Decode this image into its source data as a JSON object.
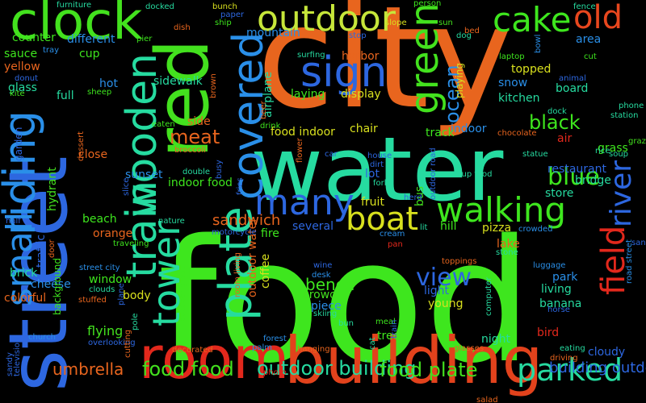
{
  "words": [
    {
      "text": "food",
      "color": "#3ee61e"
    },
    {
      "text": "city",
      "color": "#e8651e"
    },
    {
      "text": "water",
      "color": "#26dba0"
    },
    {
      "text": "street",
      "color": "#2d67e0"
    },
    {
      "text": "building",
      "color": "#e2421c"
    },
    {
      "text": "room",
      "color": "#e2281c"
    },
    {
      "text": "red",
      "color": "#43e11e"
    },
    {
      "text": "clock",
      "color": "#43e11e"
    },
    {
      "text": "outdoor",
      "color": "#c6e63a"
    },
    {
      "text": "cake",
      "color": "#3ee61e"
    },
    {
      "text": "old",
      "color": "#e8471e"
    },
    {
      "text": "sign",
      "color": "#2d67e0"
    },
    {
      "text": "green",
      "color": "#43e11e"
    },
    {
      "text": "riding",
      "color": "#2a8fe8"
    },
    {
      "text": "small",
      "color": "#2a8fe8"
    },
    {
      "text": "train",
      "color": "#26dba0"
    },
    {
      "text": "wooden",
      "color": "#26dba0"
    },
    {
      "text": "covered",
      "color": "#2a8fe8"
    },
    {
      "text": "plate",
      "color": "#26dba0"
    },
    {
      "text": "tower",
      "color": "#26dba0"
    },
    {
      "text": "many",
      "color": "#2d67e0"
    },
    {
      "text": "boat",
      "color": "#d8e01e"
    },
    {
      "text": "walking",
      "color": "#3ee61e"
    },
    {
      "text": "field",
      "color": "#e2281c"
    },
    {
      "text": "river",
      "color": "#2d67e0"
    },
    {
      "text": "blue",
      "color": "#3ee61e"
    },
    {
      "text": "parked",
      "color": "#26dba0"
    },
    {
      "text": "view",
      "color": "#2d67e0"
    },
    {
      "text": "meat",
      "color": "#e8651e"
    },
    {
      "text": "ocean",
      "color": "#2a8fe8"
    },
    {
      "text": "black",
      "color": "#3ee61e"
    },
    {
      "text": "food food",
      "color": "#43e11e"
    },
    {
      "text": "outdoor building",
      "color": "#26dba0"
    },
    {
      "text": "food plate",
      "color": "#43e11e"
    },
    {
      "text": "building outdoor",
      "color": "#2d67e0"
    },
    {
      "text": "umbrella",
      "color": "#e8651e"
    },
    {
      "text": "bench",
      "color": "#3ee61e"
    },
    {
      "text": "sandwich",
      "color": "#e8651e"
    },
    {
      "text": "beach",
      "color": "#3ee61e"
    },
    {
      "text": "orange",
      "color": "#e8651e"
    },
    {
      "text": "window",
      "color": "#3ee61e"
    },
    {
      "text": "cheese",
      "color": "#2a8fe8"
    },
    {
      "text": "brick",
      "color": "#26dba0"
    },
    {
      "text": "colorful",
      "color": "#e8651e"
    },
    {
      "text": "flying",
      "color": "#43e11e"
    },
    {
      "text": "body",
      "color": "#d8e01e"
    },
    {
      "text": "living",
      "color": "#26dba0"
    },
    {
      "text": "banana",
      "color": "#26dba0"
    },
    {
      "text": "park",
      "color": "#2a8fe8"
    },
    {
      "text": "young",
      "color": "#d8e01e"
    },
    {
      "text": "crowd",
      "color": "#43e11e"
    },
    {
      "text": "piece",
      "color": "#2a8fe8"
    },
    {
      "text": "light",
      "color": "#2d67e0"
    },
    {
      "text": "night",
      "color": "#26dba0"
    },
    {
      "text": "tree",
      "color": "#3ee61e"
    },
    {
      "text": "bird",
      "color": "#e2281c"
    },
    {
      "text": "cloudy",
      "color": "#2d67e0"
    },
    {
      "text": "fire",
      "color": "#3ee61e"
    },
    {
      "text": "several",
      "color": "#2d67e0"
    },
    {
      "text": "hill",
      "color": "#3ee61e"
    },
    {
      "text": "pizza",
      "color": "#d8e01e"
    },
    {
      "text": "lake",
      "color": "#e8651e"
    },
    {
      "text": "stone",
      "color": "#26dba0"
    },
    {
      "text": "fruit",
      "color": "#d8e01e"
    },
    {
      "text": "lot",
      "color": "#2d67e0"
    },
    {
      "text": "bus",
      "color": "#43e11e"
    },
    {
      "text": "store",
      "color": "#26dba0"
    },
    {
      "text": "bridge",
      "color": "#26dba0"
    },
    {
      "text": "restaurant",
      "color": "#2d67e0"
    },
    {
      "text": "grass",
      "color": "#3ee61e"
    },
    {
      "text": "air",
      "color": "#e2281c"
    },
    {
      "text": "indoor",
      "color": "#2a8fe8"
    },
    {
      "text": "track",
      "color": "#3ee61e"
    },
    {
      "text": "chair",
      "color": "#d8e01e"
    },
    {
      "text": "food indoor",
      "color": "#d8e01e"
    },
    {
      "text": "side",
      "color": "#e8651e"
    },
    {
      "text": "laying",
      "color": "#3ee61e"
    },
    {
      "text": "display",
      "color": "#d8e01e"
    },
    {
      "text": "harbor",
      "color": "#e8651e"
    },
    {
      "text": "airplane",
      "color": "#26dba0"
    },
    {
      "text": "mountain",
      "color": "#2a8fe8"
    },
    {
      "text": "topped",
      "color": "#d8e01e"
    },
    {
      "text": "snow",
      "color": "#2a8fe8"
    },
    {
      "text": "kitchen",
      "color": "#26dba0"
    },
    {
      "text": "board",
      "color": "#26dba0"
    },
    {
      "text": "area",
      "color": "#2a8fe8"
    },
    {
      "text": "counter",
      "color": "#3ee61e"
    },
    {
      "text": "different",
      "color": "#2a8fe8"
    },
    {
      "text": "sauce",
      "color": "#3ee61e"
    },
    {
      "text": "yellow",
      "color": "#e8651e"
    },
    {
      "text": "glass",
      "color": "#26dba0"
    },
    {
      "text": "full",
      "color": "#26dba0"
    },
    {
      "text": "cup",
      "color": "#3ee61e"
    },
    {
      "text": "hot",
      "color": "#2a8fe8"
    },
    {
      "text": "sidewalk",
      "color": "#26dba0"
    },
    {
      "text": "meal",
      "color": "#3ee61e"
    },
    {
      "text": "close",
      "color": "#e8651e"
    },
    {
      "text": "sunset",
      "color": "#2a8fe8"
    },
    {
      "text": "indoor food",
      "color": "#3ee61e"
    },
    {
      "text": "traffic",
      "color": "#2d67e0"
    },
    {
      "text": "hydrant",
      "color": "#43e11e"
    },
    {
      "text": "garden",
      "color": "#2d67e0"
    },
    {
      "text": "background",
      "color": "#3ee61e"
    },
    {
      "text": "dish",
      "color": "#e8651e"
    },
    {
      "text": "dog",
      "color": "#26dba0"
    },
    {
      "text": "person",
      "color": "#3ee61e"
    },
    {
      "text": "playing",
      "color": "#d8e01e"
    },
    {
      "text": "coffee",
      "color": "#d8e01e"
    },
    {
      "text": "outdoor water",
      "color": "#e8651e"
    },
    {
      "text": "television",
      "color": "#2d67e0"
    },
    {
      "text": "furniture",
      "color": "#26dba0"
    },
    {
      "text": "docked",
      "color": "#26dba0"
    },
    {
      "text": "bunch",
      "color": "#d8e01e"
    },
    {
      "text": "paper",
      "color": "#2d67e0"
    },
    {
      "text": "ship",
      "color": "#3ee61e"
    },
    {
      "text": "fence",
      "color": "#26dba0"
    },
    {
      "text": "slope",
      "color": "#d8e01e"
    },
    {
      "text": "sun",
      "color": "#43e11e"
    },
    {
      "text": "bed",
      "color": "#e8651e"
    },
    {
      "text": "stop",
      "color": "#2d67e0"
    },
    {
      "text": "surfing",
      "color": "#26dba0"
    },
    {
      "text": "tray",
      "color": "#2a8fe8"
    },
    {
      "text": "donut",
      "color": "#2d67e0"
    },
    {
      "text": "kite",
      "color": "#43e11e"
    },
    {
      "text": "sheep",
      "color": "#3ee61e"
    },
    {
      "text": "pier",
      "color": "#3ee61e"
    },
    {
      "text": "laptop",
      "color": "#3ee61e"
    },
    {
      "text": "bowl",
      "color": "#2a8fe8"
    },
    {
      "text": "animal",
      "color": "#2d67e0"
    },
    {
      "text": "cut",
      "color": "#3ee61e"
    },
    {
      "text": "phone",
      "color": "#26dba0"
    },
    {
      "text": "station",
      "color": "#26dba0"
    },
    {
      "text": "soup",
      "color": "#26dba0"
    },
    {
      "text": "grazing",
      "color": "#43e11e"
    },
    {
      "text": "rice",
      "color": "#26dba0"
    },
    {
      "text": "chocolate",
      "color": "#e8651e"
    },
    {
      "text": "dock",
      "color": "#26dba0"
    },
    {
      "text": "statue",
      "color": "#26dba0"
    },
    {
      "text": "house",
      "color": "#2d67e0"
    },
    {
      "text": "dirt",
      "color": "#2d67e0"
    },
    {
      "text": "fork",
      "color": "#26dba0"
    },
    {
      "text": "cup food",
      "color": "#26dba0"
    },
    {
      "text": "outdoor road",
      "color": "#2d67e0"
    },
    {
      "text": "herd",
      "color": "#2d67e0"
    },
    {
      "text": "car",
      "color": "#2d67e0"
    },
    {
      "text": "broccoli",
      "color": "#e8651e"
    },
    {
      "text": "eaten",
      "color": "#3ee61e"
    },
    {
      "text": "double",
      "color": "#26dba0"
    },
    {
      "text": "nature",
      "color": "#26dba0"
    },
    {
      "text": "busy",
      "color": "#2d67e0"
    },
    {
      "text": "fries",
      "color": "#2d67e0"
    },
    {
      "text": "flower",
      "color": "#e8651e"
    },
    {
      "text": "drink",
      "color": "#3ee61e"
    },
    {
      "text": "beer",
      "color": "#e8651e"
    },
    {
      "text": "brown",
      "color": "#e8651e"
    },
    {
      "text": "slice",
      "color": "#2d67e0"
    },
    {
      "text": "dessert",
      "color": "#e8651e"
    },
    {
      "text": "half",
      "color": "#2d67e0"
    },
    {
      "text": "door",
      "color": "#e8651e"
    },
    {
      "text": "street city",
      "color": "#2a8fe8"
    },
    {
      "text": "traveling",
      "color": "#3ee61e"
    },
    {
      "text": "motorcycle",
      "color": "#2d67e0"
    },
    {
      "text": "clouds",
      "color": "#26dba0"
    },
    {
      "text": "stuffed",
      "color": "#e8651e"
    },
    {
      "text": "plane",
      "color": "#2d67e0"
    },
    {
      "text": "overlooking",
      "color": "#2d67e0"
    },
    {
      "text": "pole",
      "color": "#26dba0"
    },
    {
      "text": "outdoor grass",
      "color": "#3ee61e"
    },
    {
      "text": "room living",
      "color": "#e8651e"
    },
    {
      "text": "church",
      "color": "#2a8fe8"
    },
    {
      "text": "decorated",
      "color": "#e8651e"
    },
    {
      "text": "photo",
      "color": "#e2281c"
    },
    {
      "text": "palm",
      "color": "#2a8fe8"
    },
    {
      "text": "forest",
      "color": "#2a8fe8"
    },
    {
      "text": "hanging",
      "color": "#e8651e"
    },
    {
      "text": "cutting",
      "color": "#e8651e"
    },
    {
      "text": "sandy",
      "color": "#2d67e0"
    },
    {
      "text": "wine",
      "color": "#2d67e0"
    },
    {
      "text": "desk",
      "color": "#2a8fe8"
    },
    {
      "text": "skiing",
      "color": "#26dba0"
    },
    {
      "text": "bun",
      "color": "#26dba0"
    },
    {
      "text": "cat",
      "color": "#26dba0"
    },
    {
      "text": "train",
      "color": "#2d67e0"
    },
    {
      "text": "glasses",
      "color": "#e8651e"
    },
    {
      "text": "salad",
      "color": "#e8651e"
    },
    {
      "text": "eating",
      "color": "#26dba0"
    },
    {
      "text": "driving",
      "color": "#e8651e"
    },
    {
      "text": "toppings",
      "color": "#e8651e"
    },
    {
      "text": "luggage",
      "color": "#2a8fe8"
    },
    {
      "text": "horse",
      "color": "#2d67e0"
    },
    {
      "text": "computer",
      "color": "#26dba0"
    },
    {
      "text": "cream",
      "color": "#2a8fe8"
    },
    {
      "text": "pan",
      "color": "#e2281c"
    },
    {
      "text": "crowded",
      "color": "#2a8fe8"
    },
    {
      "text": "sand",
      "color": "#2d67e0"
    },
    {
      "text": "road street",
      "color": "#2a8fe8"
    },
    {
      "text": "lit",
      "color": "#26dba0"
    }
  ]
}
